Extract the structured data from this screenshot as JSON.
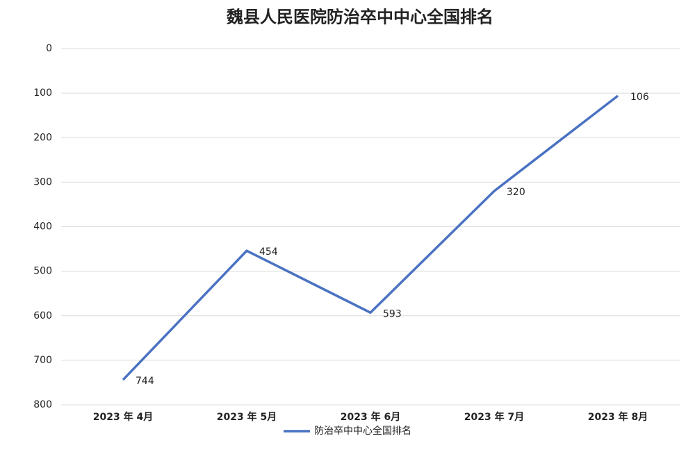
{
  "chart_data": {
    "type": "line",
    "title": "魏县人民医院防治卒中中心全国排名",
    "categories": [
      "2023 年 4月",
      "2023 年 5月",
      "2023 年 6月",
      "2023 年 7月",
      "2023 年 8月"
    ],
    "series": [
      {
        "name": "防治卒中中心全国排名",
        "color": "#4a72c2",
        "values": [
          744,
          454,
          593,
          320,
          106
        ]
      }
    ],
    "ylim": [
      0,
      800
    ],
    "y_reversed": true,
    "yticks": [
      0,
      100,
      200,
      300,
      400,
      500,
      600,
      700,
      800
    ],
    "grid": true,
    "legend": "bottom"
  }
}
